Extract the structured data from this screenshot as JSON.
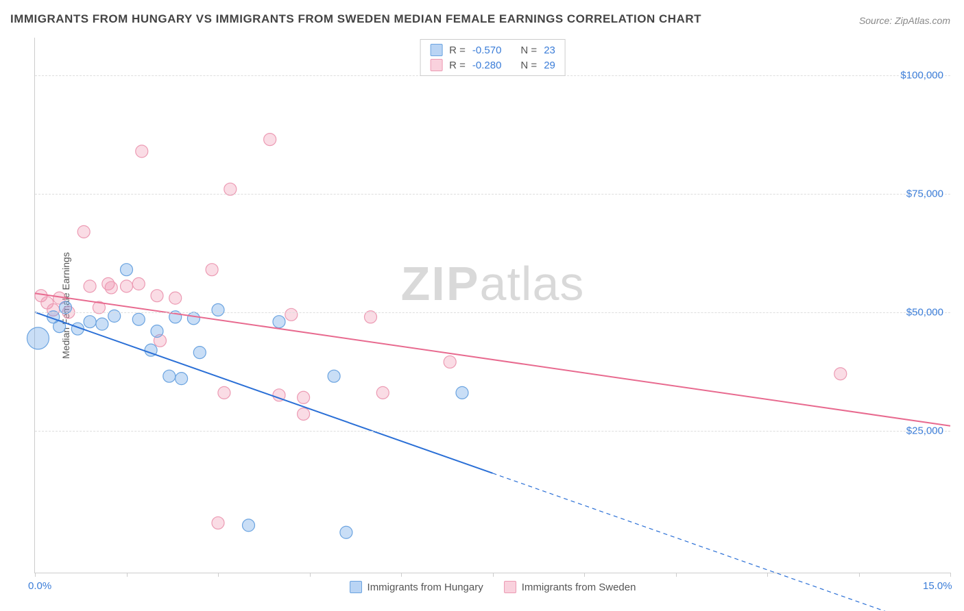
{
  "title": "IMMIGRANTS FROM HUNGARY VS IMMIGRANTS FROM SWEDEN MEDIAN FEMALE EARNINGS CORRELATION CHART",
  "source": "Source: ZipAtlas.com",
  "ylabel": "Median Female Earnings",
  "watermark_a": "ZIP",
  "watermark_b": "atlas",
  "xlim": [
    0,
    15
  ],
  "ylim": [
    -5000,
    108000
  ],
  "y_gridlines": [
    25000,
    50000,
    75000,
    100000
  ],
  "y_tick_labels": [
    "$25,000",
    "$50,000",
    "$75,000",
    "$100,000"
  ],
  "x_ticks": [
    0,
    1.5,
    3,
    4.5,
    6,
    7.5,
    9,
    10.5,
    12,
    13.5,
    15
  ],
  "x_tick_labels": {
    "0": "0.0%",
    "15": "15.0%"
  },
  "colors": {
    "series_a_fill": "rgba(100,160,230,0.35)",
    "series_a_stroke": "#6aa3e0",
    "series_a_line": "#2a6fd6",
    "series_b_fill": "rgba(240,140,170,0.30)",
    "series_b_stroke": "#ec9ab3",
    "series_b_line": "#e86a8f",
    "grid": "#dddddd",
    "axis": "#cccccc",
    "tick_text": "#3b7dd8",
    "title_text": "#444444"
  },
  "marker_radius": 9,
  "marker_radius_large": 16,
  "line_width": 2,
  "legend_top": [
    {
      "swatch_fill": "rgba(100,160,230,0.45)",
      "swatch_stroke": "#6aa3e0",
      "r": "-0.570",
      "n": "23"
    },
    {
      "swatch_fill": "rgba(240,140,170,0.40)",
      "swatch_stroke": "#ec9ab3",
      "r": "-0.280",
      "n": "29"
    }
  ],
  "legend_bottom": [
    {
      "swatch_fill": "rgba(100,160,230,0.45)",
      "swatch_stroke": "#6aa3e0",
      "label": "Immigrants from Hungary"
    },
    {
      "swatch_fill": "rgba(240,140,170,0.40)",
      "swatch_stroke": "#ec9ab3",
      "label": "Immigrants from Sweden"
    }
  ],
  "stat_prefix_r": "R = ",
  "stat_prefix_n": "N = ",
  "series_a": {
    "name": "Immigrants from Hungary",
    "trend": {
      "x1": 0,
      "y1": 50000,
      "x2": 7.5,
      "y2": 16000,
      "x2_ext": 15,
      "y2_ext": -18000
    },
    "points": [
      {
        "x": 0.05,
        "y": 44500,
        "r": 16
      },
      {
        "x": 0.3,
        "y": 49000
      },
      {
        "x": 0.4,
        "y": 47000
      },
      {
        "x": 0.5,
        "y": 51000
      },
      {
        "x": 0.7,
        "y": 46500
      },
      {
        "x": 0.9,
        "y": 48000
      },
      {
        "x": 1.1,
        "y": 47500
      },
      {
        "x": 1.3,
        "y": 49200
      },
      {
        "x": 1.5,
        "y": 59000
      },
      {
        "x": 1.7,
        "y": 48500
      },
      {
        "x": 1.9,
        "y": 42000
      },
      {
        "x": 2.0,
        "y": 46000
      },
      {
        "x": 2.2,
        "y": 36500
      },
      {
        "x": 2.3,
        "y": 49000
      },
      {
        "x": 2.4,
        "y": 36000
      },
      {
        "x": 2.6,
        "y": 48700
      },
      {
        "x": 2.7,
        "y": 41500
      },
      {
        "x": 3.0,
        "y": 50500
      },
      {
        "x": 3.5,
        "y": 5000
      },
      {
        "x": 4.0,
        "y": 48000
      },
      {
        "x": 4.9,
        "y": 36500
      },
      {
        "x": 5.1,
        "y": 3500
      },
      {
        "x": 7.0,
        "y": 33000
      }
    ]
  },
  "series_b": {
    "name": "Immigrants from Sweden",
    "trend": {
      "x1": 0,
      "y1": 54000,
      "x2": 15,
      "y2": 26000
    },
    "points": [
      {
        "x": 0.1,
        "y": 53500
      },
      {
        "x": 0.2,
        "y": 52000
      },
      {
        "x": 0.3,
        "y": 50500
      },
      {
        "x": 0.4,
        "y": 53000
      },
      {
        "x": 0.55,
        "y": 50000
      },
      {
        "x": 0.8,
        "y": 67000
      },
      {
        "x": 0.9,
        "y": 55500
      },
      {
        "x": 1.05,
        "y": 51000
      },
      {
        "x": 1.2,
        "y": 56000
      },
      {
        "x": 1.25,
        "y": 55200
      },
      {
        "x": 1.5,
        "y": 55500
      },
      {
        "x": 1.7,
        "y": 56000
      },
      {
        "x": 1.75,
        "y": 84000
      },
      {
        "x": 2.0,
        "y": 53500
      },
      {
        "x": 2.05,
        "y": 44000
      },
      {
        "x": 2.3,
        "y": 53000
      },
      {
        "x": 2.9,
        "y": 59000
      },
      {
        "x": 3.0,
        "y": 5500
      },
      {
        "x": 3.1,
        "y": 33000
      },
      {
        "x": 3.2,
        "y": 76000
      },
      {
        "x": 3.85,
        "y": 86500
      },
      {
        "x": 4.0,
        "y": 32500
      },
      {
        "x": 4.2,
        "y": 49500
      },
      {
        "x": 4.4,
        "y": 32000
      },
      {
        "x": 4.4,
        "y": 28500
      },
      {
        "x": 5.5,
        "y": 49000
      },
      {
        "x": 5.7,
        "y": 33000
      },
      {
        "x": 6.8,
        "y": 39500
      },
      {
        "x": 13.2,
        "y": 37000
      }
    ]
  }
}
